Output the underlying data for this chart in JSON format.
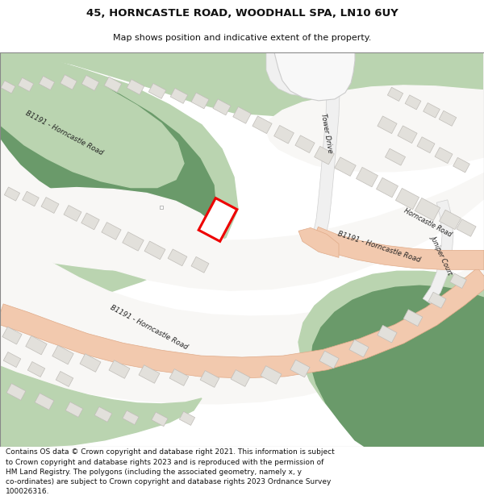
{
  "title_line1": "45, HORNCASTLE ROAD, WOODHALL SPA, LN10 6UY",
  "title_line2": "Map shows position and indicative extent of the property.",
  "footer_text": "Contains OS data © Crown copyright and database right 2021. This information is subject\nto Crown copyright and database rights 2023 and is reproduced with the permission of\nHM Land Registry. The polygons (including the associated geometry, namely x, y\nco-ordinates) are subject to Crown copyright and database rights 2023 Ordnance Survey\n100026316.",
  "map_bg": "#edeae4",
  "green_light": "#bad4b0",
  "green_dark": "#6a9a6a",
  "road_fill": "#f2c9ae",
  "road_edge": "#e0aa88",
  "building_fill": "#e2e0db",
  "building_edge": "#c0bdb8",
  "white_area": "#f8f7f5",
  "plot_edge": "#ee0000",
  "plot_fill": "#ffffff"
}
